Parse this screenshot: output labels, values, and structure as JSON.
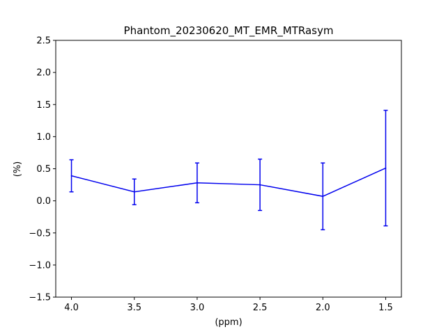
{
  "chart_data": {
    "type": "line",
    "title": "Phantom_20230620_MT_EMR_MTRasym",
    "xlabel": "(ppm)",
    "ylabel": "(%)",
    "x_reversed": true,
    "xlim": [
      4.125,
      1.375
    ],
    "ylim": [
      -1.5,
      2.5
    ],
    "x_ticks": [
      4.0,
      3.5,
      3.0,
      2.5,
      2.0,
      1.5
    ],
    "x_tick_labels": [
      "4.0",
      "3.5",
      "3.0",
      "2.5",
      "2.0",
      "1.5"
    ],
    "y_ticks": [
      -1.5,
      -1.0,
      -0.5,
      0.0,
      0.5,
      1.0,
      1.5,
      2.0,
      2.5
    ],
    "y_tick_labels": [
      "−1.5",
      "−1.0",
      "−0.5",
      "0.0",
      "0.5",
      "1.0",
      "1.5",
      "2.0",
      "2.5"
    ],
    "grid": false,
    "series": [
      {
        "color": "#0000ee",
        "x": [
          4.0,
          3.5,
          3.0,
          2.5,
          2.0,
          1.5
        ],
        "y": [
          0.39,
          0.14,
          0.28,
          0.25,
          0.07,
          0.51
        ],
        "error": [
          0.25,
          0.2,
          0.31,
          0.4,
          0.52,
          0.9
        ]
      }
    ]
  }
}
